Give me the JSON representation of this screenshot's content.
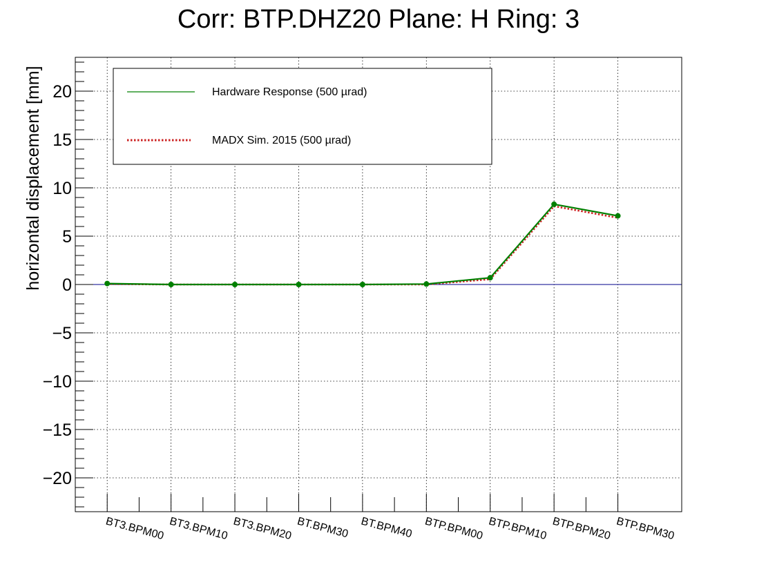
{
  "chart_data": {
    "type": "line",
    "title": "Corr: BTP.DHZ20 Plane: H Ring: 3",
    "xlabel": "",
    "ylabel": "horizontal displacement [mm]",
    "categories": [
      "BT3.BPM00",
      "BT3.BPM10",
      "BT3.BPM20",
      "BT.BPM30",
      "BT.BPM40",
      "BTP.BPM00",
      "BTP.BPM10",
      "BTP.BPM20",
      "BTP.BPM30"
    ],
    "ylim": [
      -23.5,
      23.5
    ],
    "yticks": [
      -20,
      -15,
      -10,
      -5,
      0,
      5,
      10,
      15,
      20
    ],
    "ytick_labels": [
      "−20",
      "−15",
      "−10",
      "−5",
      "0",
      "5",
      "10",
      "15",
      "20"
    ],
    "grid": true,
    "zero_line": {
      "y": 0,
      "color": "#00008b"
    },
    "legend_position": "top-left",
    "series": [
      {
        "name": "Hardware Response (500 µrad)",
        "values": [
          0.1,
          0.0,
          0.0,
          0.0,
          0.0,
          0.05,
          0.7,
          8.3,
          7.1
        ],
        "color": "#008000",
        "style": "solid",
        "markers": true,
        "marker_color": "#008000"
      },
      {
        "name": "MADX Sim. 2015 (500 µrad)",
        "values": [
          0.05,
          0.0,
          0.0,
          0.0,
          0.0,
          0.0,
          0.55,
          8.1,
          6.9
        ],
        "color": "#cc2222",
        "style": "dotted",
        "markers": false
      }
    ]
  }
}
